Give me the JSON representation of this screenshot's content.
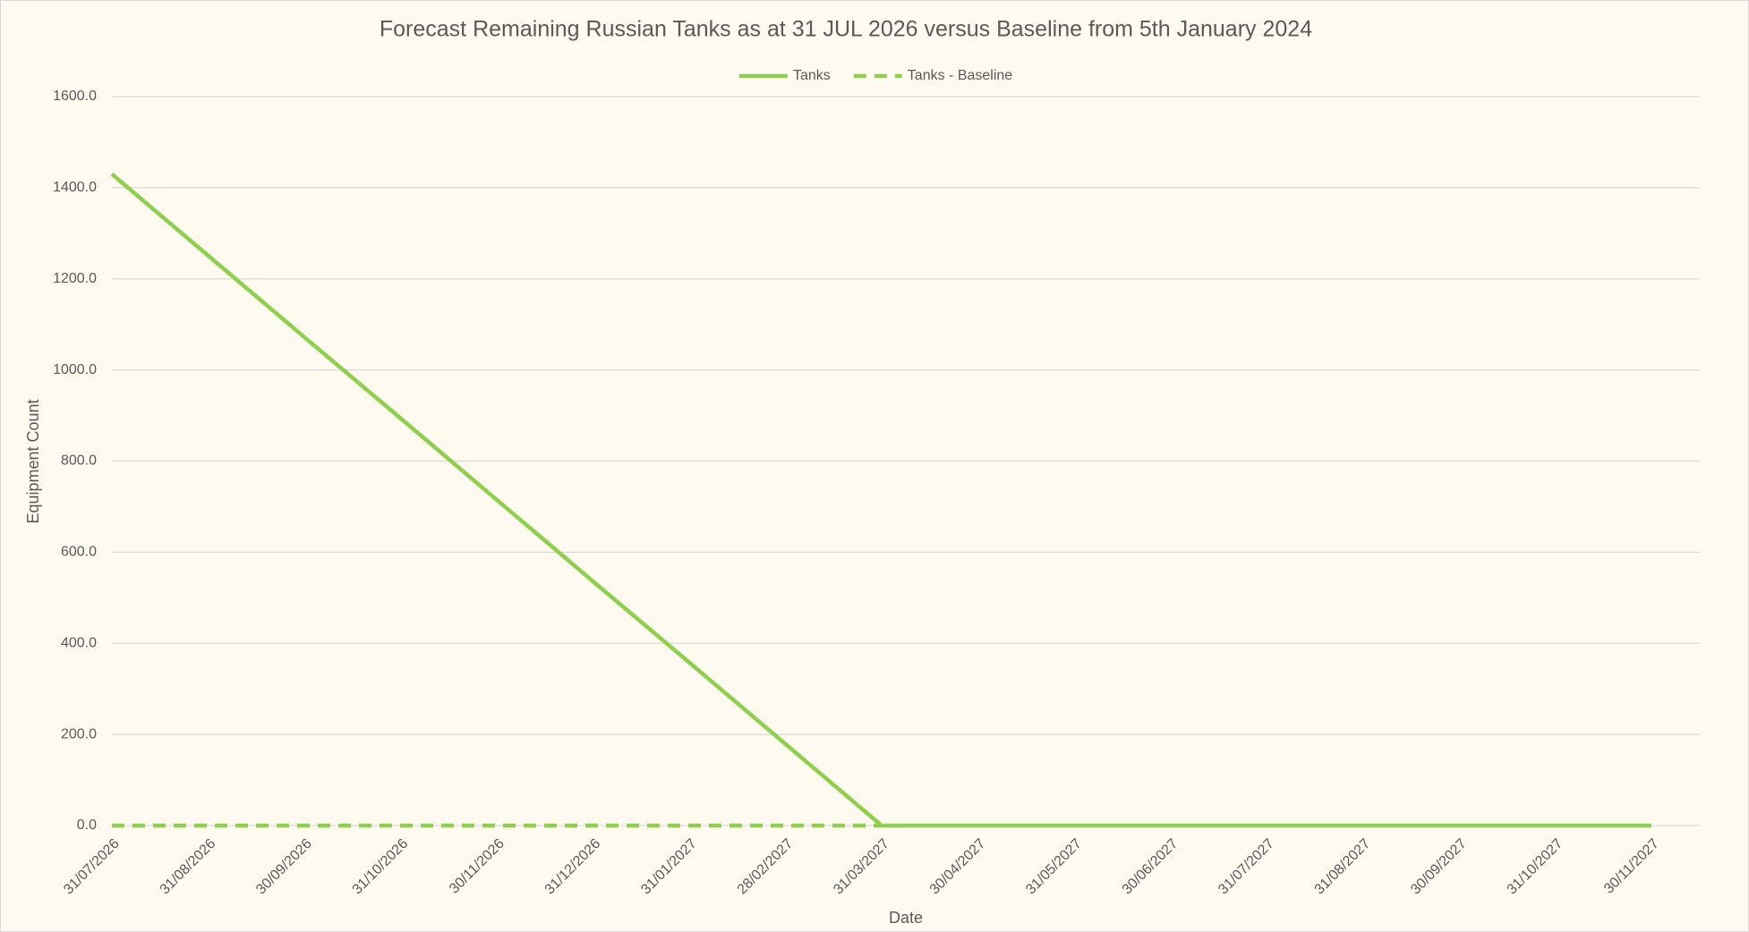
{
  "chart_data": {
    "type": "line",
    "title": "Forecast Remaining Russian Tanks as at 31 JUL 2026 versus Baseline from 5th January 2024",
    "x_label": "Date",
    "y_label": "Equipment Count",
    "categories": [
      "31/07/2026",
      "31/08/2026",
      "30/09/2026",
      "31/10/2026",
      "30/11/2026",
      "31/12/2026",
      "31/01/2027",
      "28/02/2027",
      "31/03/2027",
      "30/04/2027",
      "31/05/2027",
      "30/06/2027",
      "31/07/2027",
      "31/08/2027",
      "30/09/2027",
      "31/10/2027",
      "30/11/2027"
    ],
    "series": [
      {
        "name": "Tanks",
        "color": "#8fcf50",
        "dash": false,
        "values": [
          1430,
          1251,
          1072,
          894,
          715,
          536,
          358,
          179,
          0,
          0,
          0,
          0,
          0,
          0,
          0,
          0,
          0
        ]
      },
      {
        "name": "Tanks - Baseline",
        "color": "#8fcf50",
        "dash": true,
        "values": [
          0,
          0,
          0,
          0,
          0,
          0,
          0,
          0,
          0,
          null,
          null,
          null,
          null,
          null,
          null,
          null,
          null
        ]
      }
    ],
    "ylim": [
      0,
      1600
    ],
    "yticks": [
      {
        "value": 0,
        "label": "0.0"
      },
      {
        "value": 200,
        "label": "200.0"
      },
      {
        "value": 400,
        "label": "400.0"
      },
      {
        "value": 600,
        "label": "600.0"
      },
      {
        "value": 800,
        "label": "800.0"
      },
      {
        "value": 1000,
        "label": "1000.0"
      },
      {
        "value": 1200,
        "label": "1200.0"
      },
      {
        "value": 1400,
        "label": "1400.0"
      },
      {
        "value": 1600,
        "label": "1600.0"
      }
    ],
    "grid": true,
    "legend": "top"
  }
}
